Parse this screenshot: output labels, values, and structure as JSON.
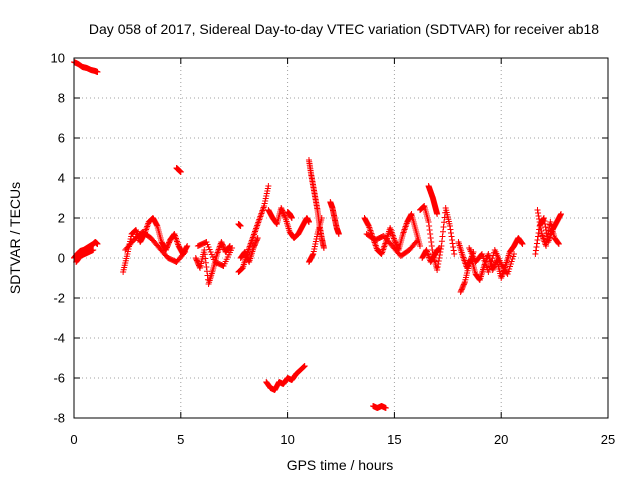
{
  "chart_data": {
    "type": "scatter",
    "title": "Day 058 of 2017, Sidereal Day-to-day VTEC variation (SDTVAR) for receiver ab18",
    "xlabel": "GPS time / hours",
    "ylabel": "SDTVAR / TECUs",
    "xlim": [
      0,
      25
    ],
    "ylim": [
      -8,
      10
    ],
    "x_ticks": [
      "0",
      "5",
      "10",
      "15",
      "20",
      "25"
    ],
    "y_ticks": [
      "-8",
      "-6",
      "-4",
      "-2",
      "0",
      "2",
      "4",
      "6",
      "8",
      "10"
    ],
    "grid": true,
    "marker": "plus",
    "color": "#ff0000",
    "series": [
      {
        "name": "SDTVAR",
        "segments": [
          {
            "x": [
              0.0,
              0.2,
              0.4,
              0.6,
              0.8,
              1.0,
              1.1
            ],
            "y": [
              9.8,
              9.7,
              9.55,
              9.5,
              9.4,
              9.35,
              9.3
            ]
          },
          {
            "x": [
              0.0,
              0.15,
              0.3,
              0.45,
              0.6,
              0.75,
              0.9,
              1.0,
              1.1
            ],
            "y": [
              0.0,
              0.2,
              0.35,
              0.4,
              0.5,
              0.6,
              0.7,
              0.8,
              0.7
            ]
          },
          {
            "x": [
              0.1,
              0.3,
              0.5,
              0.7,
              0.9
            ],
            "y": [
              -0.2,
              0.1,
              0.2,
              0.3,
              0.4
            ]
          },
          {
            "x": [
              4.8,
              4.9,
              5.0
            ],
            "y": [
              4.5,
              4.4,
              4.3
            ]
          },
          {
            "x": [
              2.3,
              2.5,
              2.7,
              2.9,
              3.1,
              3.3,
              3.5,
              3.7,
              3.9,
              4.1,
              4.3,
              4.5,
              4.7,
              4.9,
              5.1,
              5.3
            ],
            "y": [
              -0.7,
              0.2,
              1.2,
              1.4,
              0.8,
              1.2,
              1.8,
              2.0,
              1.6,
              0.8,
              0.4,
              0.9,
              1.2,
              0.6,
              0.2,
              0.6
            ]
          },
          {
            "x": [
              2.4,
              2.8,
              3.2,
              3.6,
              4.0,
              4.4,
              4.8,
              5.2
            ],
            "y": [
              0.4,
              0.9,
              1.3,
              1.0,
              0.5,
              0.0,
              -0.2,
              0.3
            ]
          },
          {
            "x": [
              5.7,
              5.9,
              6.1,
              6.3,
              6.5,
              6.7,
              6.9,
              7.1,
              7.3
            ],
            "y": [
              0.0,
              -0.5,
              0.4,
              -1.3,
              -0.6,
              0.2,
              0.8,
              0.3,
              0.6
            ]
          },
          {
            "x": [
              5.8,
              6.2,
              6.6,
              7.0,
              7.4
            ],
            "y": [
              0.6,
              0.8,
              -0.2,
              -0.4,
              0.5
            ]
          },
          {
            "x": [
              7.7,
              7.9,
              8.1,
              8.3,
              8.5,
              8.7,
              8.9,
              9.1
            ],
            "y": [
              -0.7,
              -0.5,
              0.2,
              0.8,
              1.4,
              2.0,
              2.6,
              3.6
            ]
          },
          {
            "x": [
              7.8,
              8.0,
              8.2,
              8.4,
              8.6
            ],
            "y": [
              0.0,
              0.3,
              -0.2,
              0.5,
              1.0
            ]
          },
          {
            "x": [
              7.7,
              7.8
            ],
            "y": [
              1.7,
              1.6
            ]
          },
          {
            "x": [
              9.1,
              9.3,
              9.5,
              9.7,
              9.9,
              10.1,
              10.3,
              10.5,
              10.7,
              10.9,
              11.0
            ],
            "y": [
              2.4,
              2.0,
              1.7,
              2.5,
              2.0,
              1.3,
              1.0,
              1.2,
              1.6,
              2.0,
              1.8
            ]
          },
          {
            "x": [
              11.0,
              11.1,
              11.2,
              11.3,
              11.4,
              11.5,
              11.6,
              11.7
            ],
            "y": [
              4.9,
              4.2,
              3.6,
              3.0,
              2.4,
              1.6,
              1.0,
              0.5
            ]
          },
          {
            "x": [
              11.0,
              11.2,
              11.4,
              11.6
            ],
            "y": [
              -0.2,
              0.2,
              1.2,
              2.0
            ]
          },
          {
            "x": [
              12.0,
              12.1,
              12.2,
              12.3,
              12.4
            ],
            "y": [
              2.8,
              2.5,
              2.0,
              1.5,
              1.2
            ]
          },
          {
            "x": [
              10.0,
              10.1,
              10.2
            ],
            "y": [
              2.3,
              2.2,
              2.0
            ]
          },
          {
            "x": [
              9.0,
              9.2,
              9.4,
              9.6,
              9.8,
              10.0,
              10.2,
              10.4,
              10.6,
              10.8
            ],
            "y": [
              -6.2,
              -6.5,
              -6.6,
              -6.2,
              -6.3,
              -6.0,
              -6.1,
              -5.8,
              -5.6,
              -5.4
            ]
          },
          {
            "x": [
              14.0,
              14.2,
              14.4,
              14.6
            ],
            "y": [
              -7.4,
              -7.5,
              -7.4,
              -7.5
            ]
          },
          {
            "x": [
              13.6,
              13.8,
              14.0,
              14.2,
              14.4,
              14.6,
              14.8,
              15.0,
              15.2,
              15.4,
              15.6,
              15.8,
              16.0,
              16.2
            ],
            "y": [
              2.0,
              1.6,
              1.0,
              0.4,
              0.2,
              0.8,
              1.5,
              0.9,
              0.4,
              1.2,
              1.8,
              2.2,
              1.4,
              0.6
            ]
          },
          {
            "x": [
              13.7,
              14.1,
              14.5,
              14.9,
              15.3,
              15.7,
              16.1
            ],
            "y": [
              1.2,
              0.9,
              1.1,
              0.6,
              0.1,
              0.4,
              0.9
            ]
          },
          {
            "x": [
              16.2,
              16.4,
              16.6,
              16.8,
              17.0,
              17.2,
              17.4,
              17.6,
              17.8
            ],
            "y": [
              2.4,
              2.6,
              1.8,
              0.2,
              -0.6,
              0.6,
              2.5,
              1.6,
              0.2
            ]
          },
          {
            "x": [
              16.6,
              16.7,
              16.8,
              16.9,
              17.0
            ],
            "y": [
              3.6,
              3.3,
              3.0,
              2.6,
              2.2
            ]
          },
          {
            "x": [
              16.3,
              16.5,
              16.7,
              16.9,
              17.1
            ],
            "y": [
              0.0,
              0.4,
              -0.2,
              0.2,
              0.5
            ]
          },
          {
            "x": [
              18.0,
              18.2,
              18.4,
              18.6,
              18.8,
              19.0,
              19.2,
              19.4,
              19.6,
              19.8,
              20.0,
              20.2,
              20.4,
              20.6,
              20.8,
              21.0
            ],
            "y": [
              0.8,
              0.1,
              -0.5,
              0.0,
              -0.8,
              -1.1,
              -0.4,
              0.2,
              -0.6,
              -0.1,
              -1.0,
              -0.4,
              0.3,
              0.6,
              1.0,
              0.7
            ]
          },
          {
            "x": [
              18.1,
              18.3,
              18.5,
              18.7
            ],
            "y": [
              -1.7,
              -1.2,
              -0.3,
              0.3
            ]
          },
          {
            "x": [
              18.5,
              18.8,
              19.1,
              19.4,
              19.7,
              20.0,
              20.3,
              20.6
            ],
            "y": [
              0.5,
              -0.2,
              0.2,
              -0.7,
              0.4,
              -0.3,
              -0.8,
              0.2
            ]
          },
          {
            "x": [
              21.6,
              21.8,
              22.0,
              22.2,
              22.4,
              22.6,
              22.8
            ],
            "y": [
              0.2,
              1.6,
              2.0,
              0.8,
              1.4,
              1.8,
              2.2
            ]
          },
          {
            "x": [
              21.7,
              21.9,
              22.1,
              22.3,
              22.5,
              22.7
            ],
            "y": [
              2.4,
              1.2,
              0.6,
              1.8,
              1.0,
              0.7
            ]
          }
        ]
      }
    ]
  }
}
